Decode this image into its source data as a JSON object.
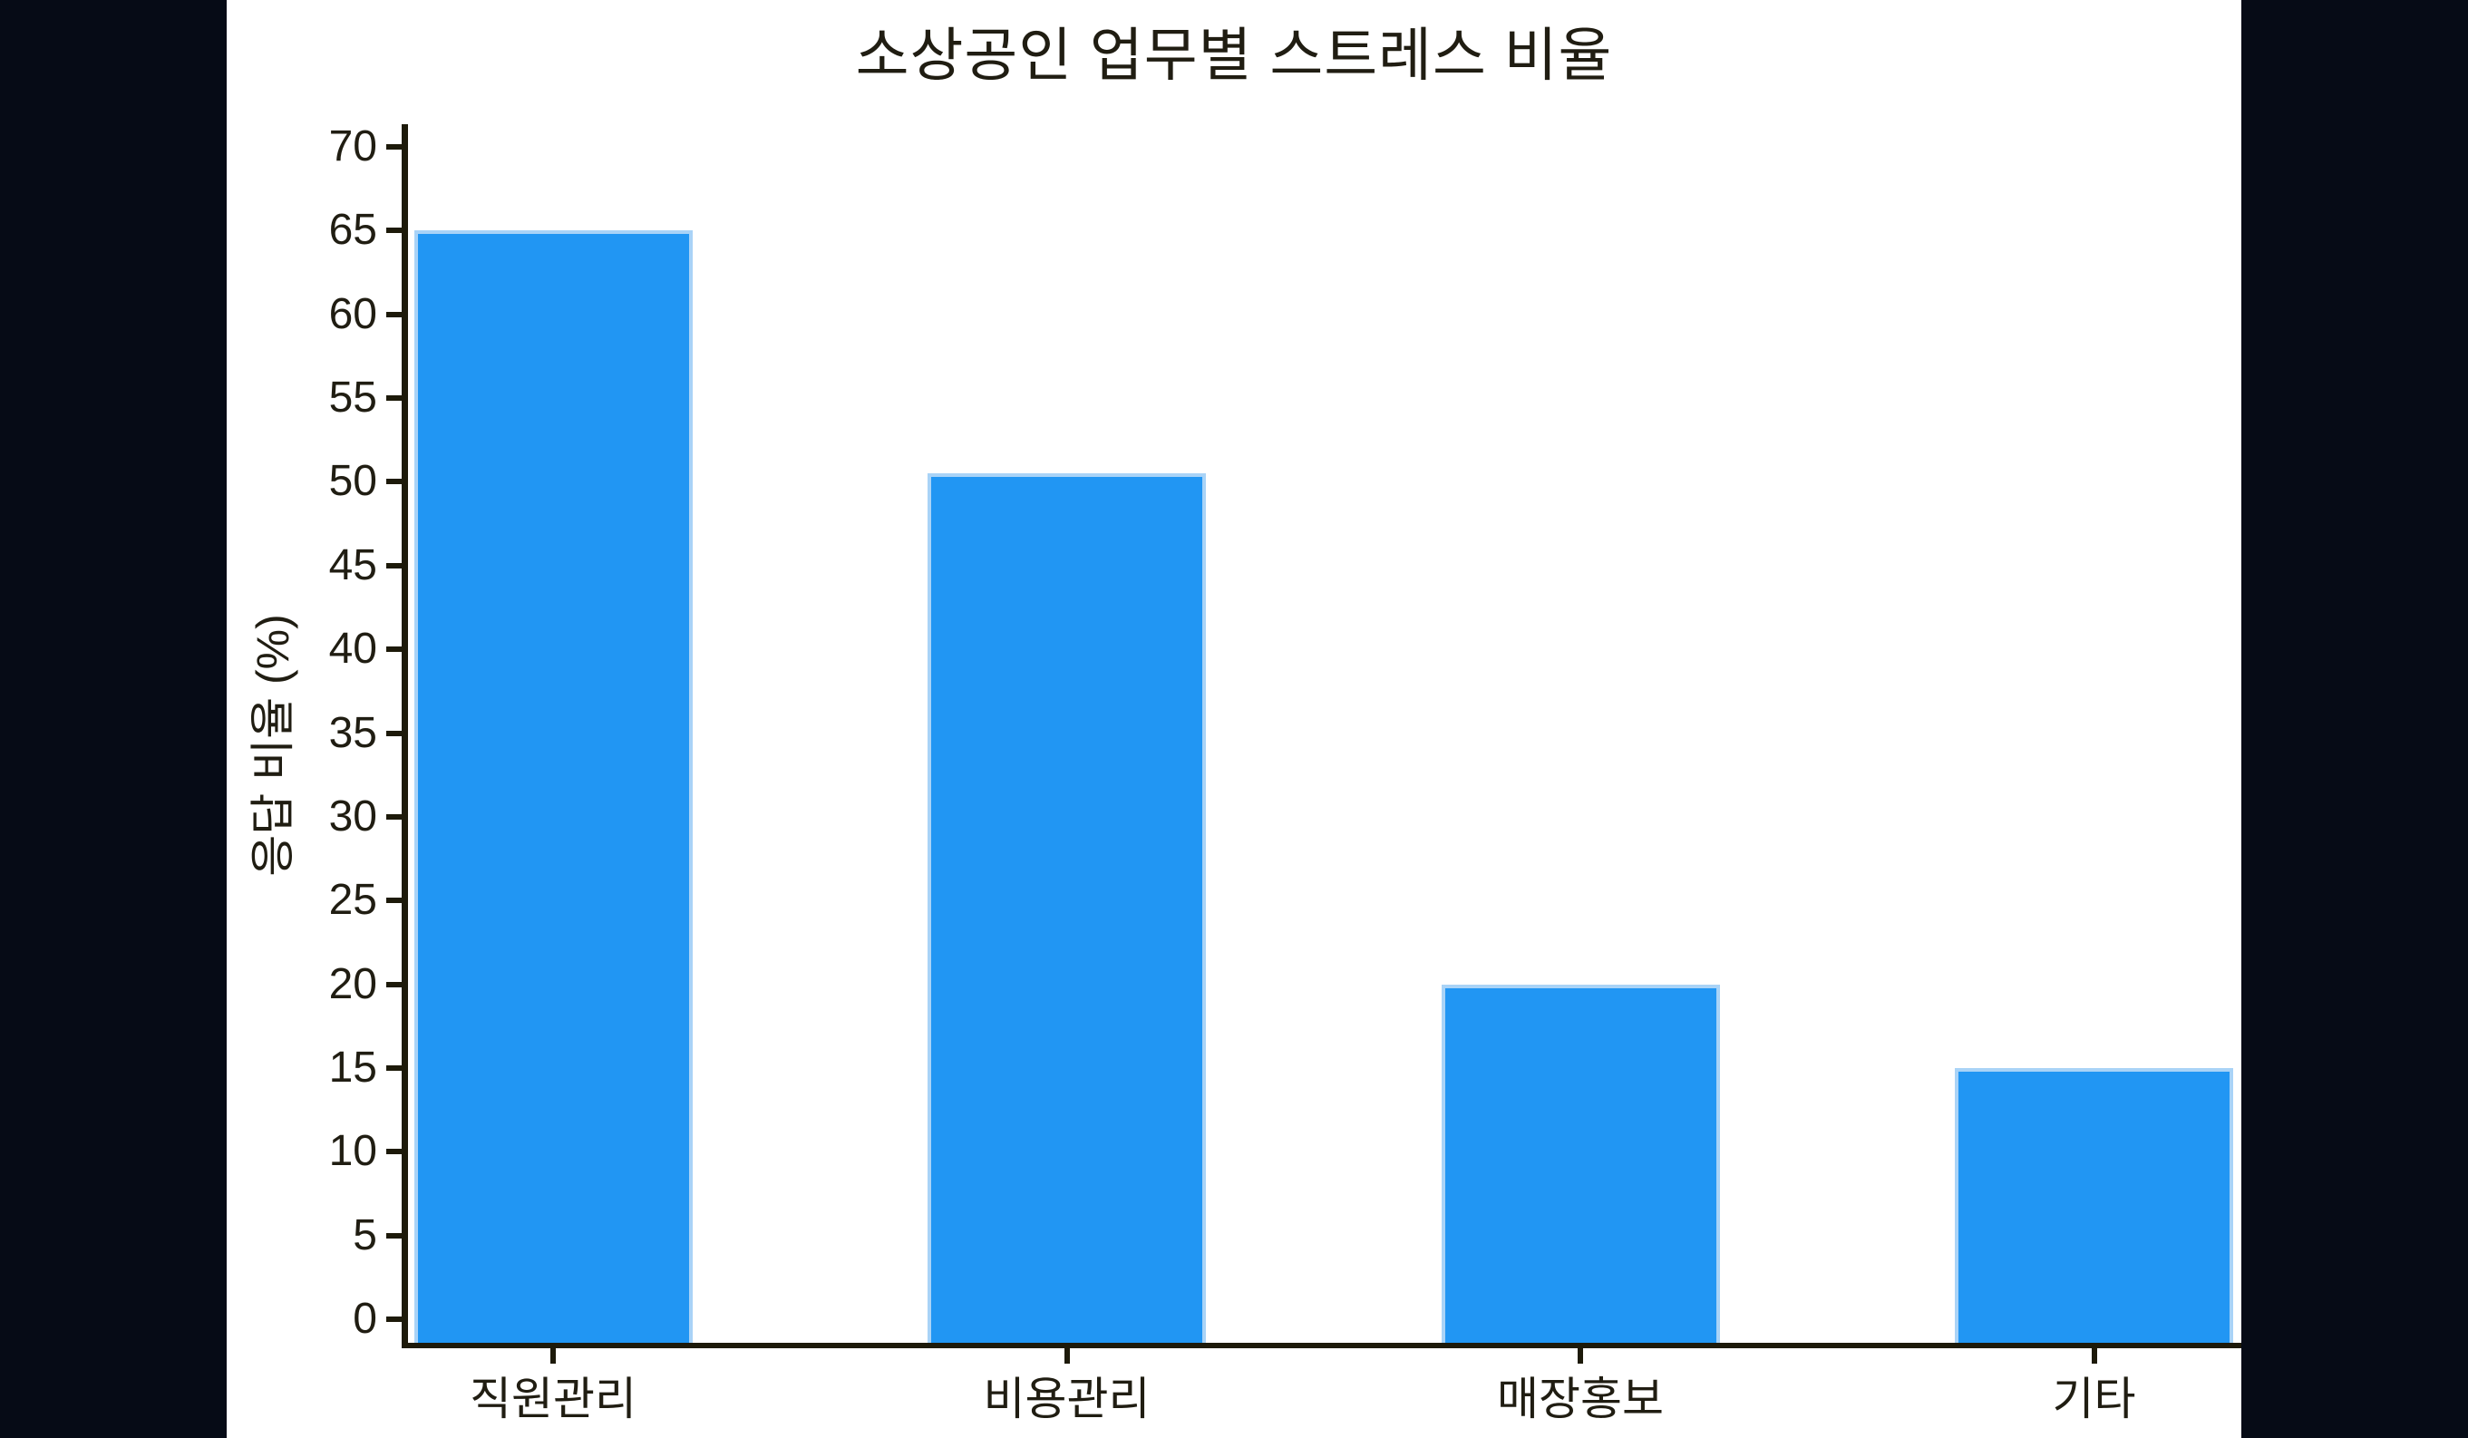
{
  "window": {
    "background_color": "#060b16"
  },
  "figure": {
    "background_color": "#ffffff"
  },
  "chart_data": {
    "type": "bar",
    "title": "소상공인 업무별 스트레스 비율",
    "ylabel": "응답 비율 (%)",
    "xlabel": "",
    "categories": [
      "직원관리",
      "비용관리",
      "매장홍보",
      "기타"
    ],
    "values": [
      65,
      50.5,
      20,
      15
    ],
    "yticks": [
      0,
      5,
      10,
      15,
      20,
      25,
      30,
      35,
      40,
      45,
      50,
      55,
      60,
      65,
      70
    ],
    "ylim": [
      0,
      70
    ],
    "grid": false,
    "legend": "none",
    "bar_color": "#2196f3",
    "bar_edge_color": "#a9d3f7",
    "axis_color": "#1d1a0a",
    "text_color": "#201d12"
  }
}
